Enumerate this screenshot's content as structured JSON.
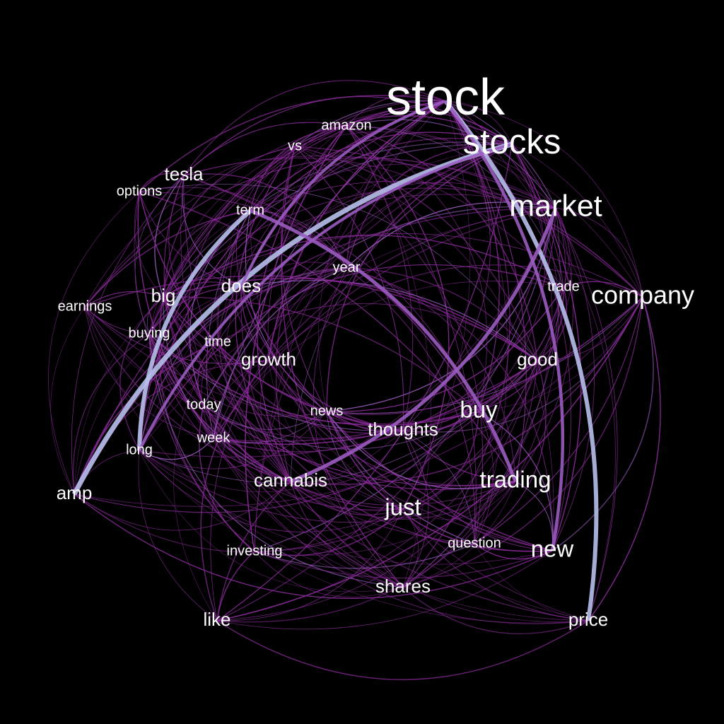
{
  "nodes": [
    {
      "id": "stock",
      "label": "stock",
      "weight": 10
    },
    {
      "id": "stocks",
      "label": "stocks",
      "weight": 7
    },
    {
      "id": "market",
      "label": "market",
      "weight": 6
    },
    {
      "id": "company",
      "label": "company",
      "weight": 5
    },
    {
      "id": "amazon",
      "label": "amazon",
      "weight": 2
    },
    {
      "id": "vs",
      "label": "vs",
      "weight": 2
    },
    {
      "id": "tesla",
      "label": "tesla",
      "weight": 3
    },
    {
      "id": "options",
      "label": "options",
      "weight": 2
    },
    {
      "id": "term",
      "label": "term",
      "weight": 2
    },
    {
      "id": "year",
      "label": "year",
      "weight": 2
    },
    {
      "id": "does",
      "label": "does",
      "weight": 3
    },
    {
      "id": "trade",
      "label": "trade",
      "weight": 2
    },
    {
      "id": "earnings",
      "label": "earnings",
      "weight": 2
    },
    {
      "id": "big",
      "label": "big",
      "weight": 3
    },
    {
      "id": "buying",
      "label": "buying",
      "weight": 2
    },
    {
      "id": "time",
      "label": "time",
      "weight": 2
    },
    {
      "id": "growth",
      "label": "growth",
      "weight": 3
    },
    {
      "id": "good",
      "label": "good",
      "weight": 3
    },
    {
      "id": "today",
      "label": "today",
      "weight": 2
    },
    {
      "id": "news",
      "label": "news",
      "weight": 2
    },
    {
      "id": "buy",
      "label": "buy",
      "weight": 4
    },
    {
      "id": "thoughts",
      "label": "thoughts",
      "weight": 3
    },
    {
      "id": "week",
      "label": "week",
      "weight": 2
    },
    {
      "id": "long",
      "label": "long",
      "weight": 2
    },
    {
      "id": "amp",
      "label": "amp",
      "weight": 3
    },
    {
      "id": "cannabis",
      "label": "cannabis",
      "weight": 3
    },
    {
      "id": "trading",
      "label": "trading",
      "weight": 4
    },
    {
      "id": "just",
      "label": "just",
      "weight": 4
    },
    {
      "id": "investing",
      "label": "investing",
      "weight": 2
    },
    {
      "id": "question",
      "label": "question",
      "weight": 2
    },
    {
      "id": "new",
      "label": "new",
      "weight": 4
    },
    {
      "id": "shares",
      "label": "shares",
      "weight": 3
    },
    {
      "id": "like",
      "label": "like",
      "weight": 3
    },
    {
      "id": "price",
      "label": "price",
      "weight": 3
    }
  ],
  "strong_edges": [
    {
      "source": "stocks",
      "target": "amp",
      "strength": 1.0
    },
    {
      "source": "stock",
      "target": "price",
      "strength": 0.8
    },
    {
      "source": "term",
      "target": "long",
      "strength": 0.8
    },
    {
      "source": "term",
      "target": "trading",
      "strength": 0.6
    },
    {
      "source": "cannabis",
      "target": "market",
      "strength": 0.6
    },
    {
      "source": "stock",
      "target": "new",
      "strength": 0.5
    },
    {
      "source": "stock",
      "target": "does",
      "strength": 0.4
    },
    {
      "source": "stocks",
      "target": "long",
      "strength": 0.4
    }
  ],
  "colors": {
    "background": "#000000",
    "label": "#ffffff",
    "edge_weak": "#8a2a9a",
    "edge_medium": "#9a5cc0",
    "edge_strong": "#b8c0ec"
  }
}
